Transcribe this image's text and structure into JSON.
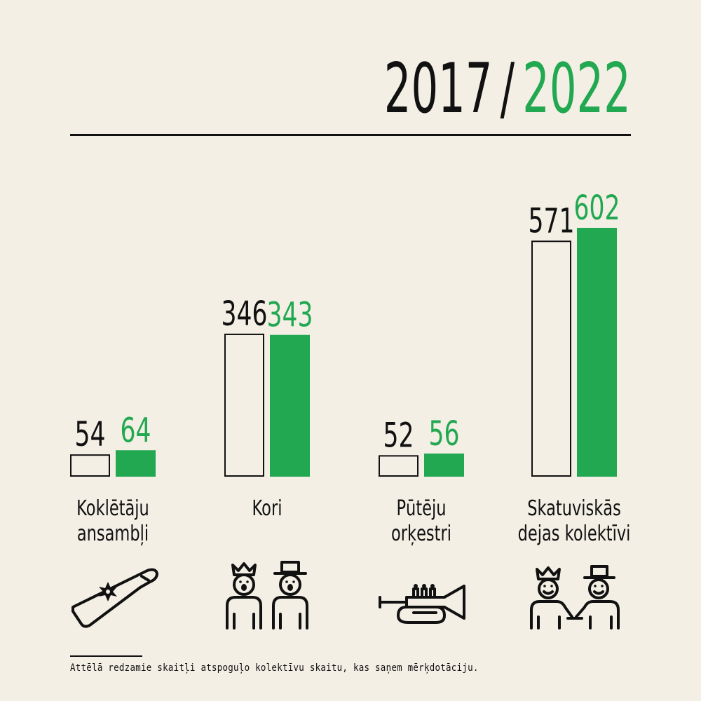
{
  "header": {
    "year_before": "2017",
    "separator": "/",
    "year_after": "2022"
  },
  "colors": {
    "background": "#f3efe5",
    "ink": "#111111",
    "accent": "#22a851"
  },
  "chart_data": {
    "type": "bar",
    "categories": [
      [
        "Koklētāju",
        "ansambļi"
      ],
      [
        "Kori"
      ],
      [
        "Pūtēju",
        "orķestri"
      ],
      [
        "Skatuviskās",
        "dejas kolektīvi"
      ]
    ],
    "series": [
      {
        "name": "2017",
        "style": "outline",
        "values": [
          54,
          346,
          52,
          571
        ]
      },
      {
        "name": "2022",
        "style": "filled-green",
        "values": [
          64,
          343,
          56,
          602
        ]
      }
    ],
    "ylim": [
      0,
      602
    ],
    "grid": false,
    "legend": "title"
  },
  "icons": [
    "kokle-icon",
    "choir-singers-icon",
    "trumpet-icon",
    "folk-dancers-icon"
  ],
  "footnote": "Attēlā redzamie skaitļi atspoguļo kolektīvu skaitu, kas saņem mērķdotāciju."
}
